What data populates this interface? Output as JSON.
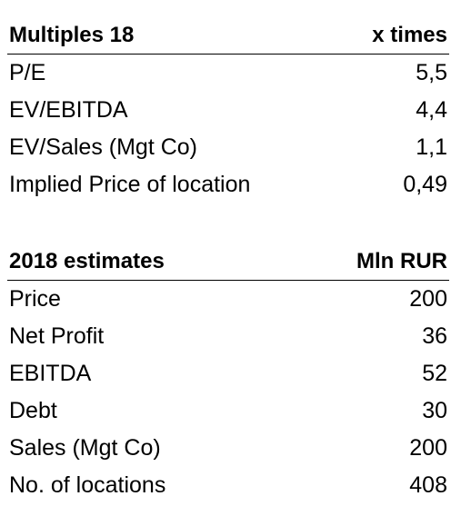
{
  "multiples": {
    "header": {
      "label": "Multiples 18",
      "unit": "x times"
    },
    "rows": [
      {
        "label": "P/E",
        "value": "5,5"
      },
      {
        "label": "EV/EBITDA",
        "value": "4,4"
      },
      {
        "label": "EV/Sales (Mgt Co)",
        "value": "1,1"
      },
      {
        "label": "Implied Price of location",
        "value": "0,49"
      }
    ]
  },
  "estimates": {
    "header": {
      "label": "2018 estimates",
      "unit": "Mln RUR"
    },
    "rows": [
      {
        "label": "Price",
        "value": "200"
      },
      {
        "label": "Net Profit",
        "value": "36"
      },
      {
        "label": "EBITDA",
        "value": "52"
      },
      {
        "label": "Debt",
        "value": "30"
      },
      {
        "label": "Sales (Mgt Co)",
        "value": "200"
      },
      {
        "label": "No. of locations",
        "value": "408"
      }
    ]
  }
}
